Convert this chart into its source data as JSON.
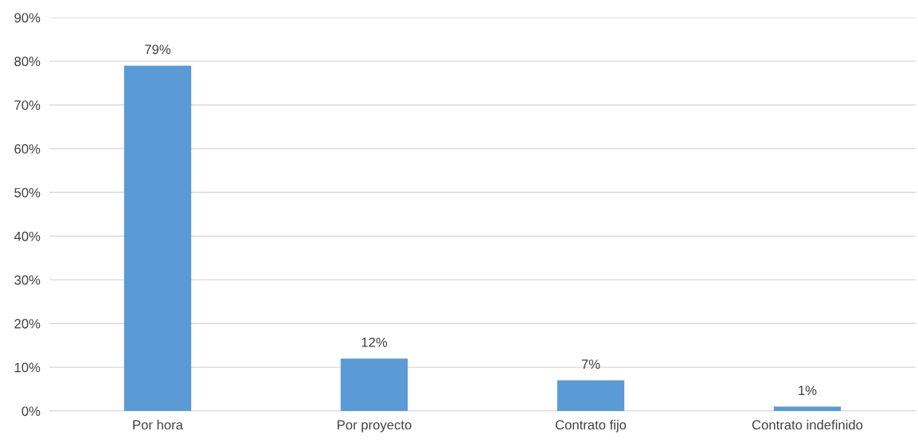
{
  "chart_data": {
    "type": "bar",
    "categories": [
      "Por hora",
      "Por proyecto",
      "Contrato fijo",
      "Contrato indefinido"
    ],
    "values": [
      79,
      12,
      7,
      1
    ],
    "value_labels": [
      "79%",
      "12%",
      "7%",
      "1%"
    ],
    "color": "#5b9bd5",
    "ylim": [
      0,
      90
    ],
    "yticks": [
      {
        "value": 0,
        "label": "0%"
      },
      {
        "value": 10,
        "label": "10%"
      },
      {
        "value": 20,
        "label": "20%"
      },
      {
        "value": 30,
        "label": "30%"
      },
      {
        "value": 40,
        "label": "40%"
      },
      {
        "value": 50,
        "label": "50%"
      },
      {
        "value": 60,
        "label": "60%"
      },
      {
        "value": 70,
        "label": "70%"
      },
      {
        "value": 80,
        "label": "80%"
      },
      {
        "value": 90,
        "label": "90%"
      }
    ],
    "grid": "y",
    "legend": false
  }
}
